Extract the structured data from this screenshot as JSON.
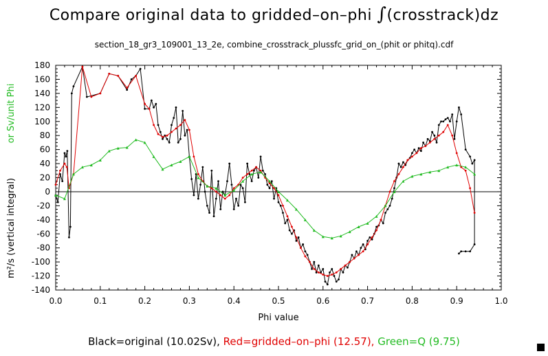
{
  "title_prefix": "Compare original data to gridded–on–phi ",
  "title_integral": "∫",
  "title_suffix": "(crosstrack)dz",
  "subtitle": "section_18_gr3_109001_13_2e, combine_crosstrack_plussfc_grid_on_(phit or phitq).cdf",
  "legend": {
    "black": "Black=original (10.02Sv),",
    "red": "Red=gridded–on–phi (12.57),",
    "green": "Green=Q (9.75)"
  },
  "colors": {
    "black": "#000000",
    "red": "#e00000",
    "green": "#22bb22"
  },
  "chart_data": {
    "type": "line",
    "title": "Compare original data to gridded-on-phi ∫(crosstrack)dz",
    "xlabel": "Phi value",
    "ylabel_black": "m²/s (vertical integral)",
    "ylabel_green": "or Sv/unit Phi",
    "xlim": [
      0.0,
      1.0
    ],
    "ylim": [
      -140,
      180
    ],
    "xticks": [
      "0.0",
      "0.1",
      "0.2",
      "0.3",
      "0.4",
      "0.5",
      "0.6",
      "0.7",
      "0.8",
      "0.9",
      "1.0"
    ],
    "yticks": [
      "180",
      "160",
      "140",
      "120",
      "100",
      "80",
      "60",
      "40",
      "20",
      "0",
      "-20",
      "-40",
      "-60",
      "-80",
      "-100",
      "-120",
      "-140"
    ],
    "series": [
      {
        "name": "original",
        "color": "black",
        "x": [
          0.0,
          0.005,
          0.01,
          0.015,
          0.02,
          0.023,
          0.026,
          0.03,
          0.033,
          0.036,
          0.04,
          0.06,
          0.07,
          0.1,
          0.12,
          0.14,
          0.16,
          0.17,
          0.18,
          0.19,
          0.2,
          0.21,
          0.215,
          0.22,
          0.225,
          0.23,
          0.235,
          0.24,
          0.245,
          0.25,
          0.255,
          0.26,
          0.265,
          0.27,
          0.275,
          0.28,
          0.285,
          0.29,
          0.295,
          0.3,
          0.305,
          0.31,
          0.315,
          0.32,
          0.325,
          0.33,
          0.335,
          0.34,
          0.345,
          0.35,
          0.355,
          0.36,
          0.365,
          0.37,
          0.375,
          0.38,
          0.385,
          0.39,
          0.395,
          0.4,
          0.405,
          0.41,
          0.415,
          0.42,
          0.425,
          0.43,
          0.435,
          0.44,
          0.445,
          0.45,
          0.455,
          0.46,
          0.465,
          0.47,
          0.475,
          0.48,
          0.485,
          0.49,
          0.495,
          0.5,
          0.505,
          0.51,
          0.515,
          0.52,
          0.525,
          0.53,
          0.535,
          0.54,
          0.545,
          0.55,
          0.555,
          0.56,
          0.565,
          0.57,
          0.575,
          0.58,
          0.585,
          0.59,
          0.595,
          0.6,
          0.605,
          0.61,
          0.615,
          0.62,
          0.625,
          0.63,
          0.635,
          0.64,
          0.645,
          0.65,
          0.655,
          0.66,
          0.665,
          0.67,
          0.675,
          0.68,
          0.685,
          0.69,
          0.695,
          0.7,
          0.705,
          0.71,
          0.715,
          0.72,
          0.725,
          0.73,
          0.735,
          0.74,
          0.745,
          0.75,
          0.755,
          0.76,
          0.765,
          0.77,
          0.775,
          0.78,
          0.785,
          0.79,
          0.795,
          0.8,
          0.805,
          0.81,
          0.815,
          0.82,
          0.825,
          0.83,
          0.835,
          0.84,
          0.845,
          0.85,
          0.855,
          0.86,
          0.865,
          0.87,
          0.875,
          0.88,
          0.885,
          0.89,
          0.895,
          0.9,
          0.905,
          0.91,
          0.92,
          0.93,
          0.935,
          0.94,
          0.94,
          0.93,
          0.92,
          0.91,
          0.905
        ],
        "y": [
          -5,
          -15,
          25,
          15,
          55,
          50,
          58,
          -65,
          -50,
          140,
          150,
          178,
          135,
          140,
          168,
          165,
          145,
          160,
          165,
          175,
          118,
          118,
          130,
          120,
          125,
          95,
          85,
          75,
          80,
          75,
          70,
          95,
          105,
          120,
          70,
          75,
          115,
          80,
          88,
          50,
          18,
          -5,
          25,
          -10,
          10,
          35,
          0,
          -20,
          -30,
          30,
          -35,
          -10,
          15,
          -25,
          0,
          -5,
          15,
          40,
          10,
          -25,
          -10,
          -20,
          10,
          5,
          -15,
          40,
          25,
          15,
          30,
          35,
          20,
          50,
          30,
          25,
          10,
          5,
          15,
          -10,
          5,
          -15,
          -20,
          -30,
          -45,
          -40,
          -55,
          -60,
          -55,
          -70,
          -65,
          -80,
          -75,
          -85,
          -90,
          -100,
          -110,
          -100,
          -115,
          -105,
          -115,
          -110,
          -128,
          -132,
          -115,
          -110,
          -120,
          -128,
          -125,
          -110,
          -115,
          -105,
          -108,
          -100,
          -90,
          -95,
          -85,
          -90,
          -80,
          -75,
          -82,
          -70,
          -65,
          -68,
          -60,
          -50,
          -48,
          -40,
          -45,
          -30,
          -25,
          -20,
          -10,
          5,
          20,
          40,
          35,
          42,
          38,
          45,
          48,
          55,
          60,
          55,
          62,
          58,
          70,
          65,
          75,
          72,
          85,
          80,
          70,
          95,
          100,
          100,
          103,
          105,
          100,
          110,
          75,
          100,
          120,
          110,
          60,
          50,
          40,
          45,
          -75,
          -85,
          -85,
          -85,
          -88
        ],
        "marker": "small-dot"
      },
      {
        "name": "gridded-on-phi",
        "color": "red",
        "x": [
          0.0,
          0.01,
          0.02,
          0.025,
          0.03,
          0.04,
          0.06,
          0.08,
          0.1,
          0.12,
          0.14,
          0.16,
          0.18,
          0.2,
          0.21,
          0.22,
          0.23,
          0.24,
          0.25,
          0.26,
          0.27,
          0.28,
          0.29,
          0.3,
          0.31,
          0.32,
          0.33,
          0.34,
          0.35,
          0.36,
          0.37,
          0.38,
          0.39,
          0.4,
          0.41,
          0.42,
          0.43,
          0.44,
          0.45,
          0.46,
          0.47,
          0.48,
          0.49,
          0.5,
          0.51,
          0.52,
          0.53,
          0.54,
          0.55,
          0.56,
          0.57,
          0.58,
          0.59,
          0.6,
          0.61,
          0.62,
          0.63,
          0.64,
          0.65,
          0.66,
          0.67,
          0.68,
          0.69,
          0.7,
          0.71,
          0.72,
          0.73,
          0.74,
          0.75,
          0.76,
          0.77,
          0.78,
          0.79,
          0.8,
          0.81,
          0.82,
          0.83,
          0.84,
          0.85,
          0.86,
          0.87,
          0.88,
          0.89,
          0.9,
          0.91,
          0.92,
          0.93,
          0.94
        ],
        "y": [
          10,
          30,
          40,
          35,
          5,
          25,
          178,
          135,
          140,
          168,
          165,
          148,
          165,
          125,
          118,
          95,
          82,
          78,
          80,
          85,
          90,
          95,
          102,
          88,
          50,
          25,
          15,
          8,
          5,
          0,
          -5,
          -10,
          -5,
          5,
          10,
          20,
          25,
          30,
          35,
          30,
          20,
          12,
          5,
          -5,
          -20,
          -35,
          -50,
          -65,
          -80,
          -92,
          -100,
          -110,
          -115,
          -118,
          -120,
          -118,
          -115,
          -110,
          -105,
          -100,
          -95,
          -90,
          -85,
          -75,
          -65,
          -55,
          -40,
          -20,
          0,
          15,
          25,
          35,
          45,
          50,
          55,
          62,
          65,
          70,
          75,
          80,
          85,
          95,
          80,
          55,
          35,
          30,
          5,
          -30
        ],
        "marker": "small-dot"
      },
      {
        "name": "Q",
        "color": "green",
        "x": [
          0.0,
          0.02,
          0.04,
          0.06,
          0.08,
          0.1,
          0.12,
          0.14,
          0.16,
          0.18,
          0.2,
          0.22,
          0.24,
          0.26,
          0.28,
          0.3,
          0.32,
          0.34,
          0.36,
          0.38,
          0.4,
          0.42,
          0.44,
          0.46,
          0.48,
          0.5,
          0.52,
          0.54,
          0.56,
          0.58,
          0.6,
          0.62,
          0.64,
          0.66,
          0.68,
          0.7,
          0.72,
          0.74,
          0.76,
          0.78,
          0.8,
          0.82,
          0.84,
          0.86,
          0.88,
          0.9,
          0.92,
          0.94
        ],
        "y": [
          -5,
          -10,
          25,
          35,
          38,
          45,
          58,
          62,
          63,
          74,
          70,
          50,
          32,
          38,
          43,
          50,
          20,
          8,
          5,
          -5,
          2,
          15,
          25,
          28,
          15,
          0,
          -12,
          -25,
          -40,
          -55,
          -64,
          -66,
          -63,
          -57,
          -50,
          -45,
          -35,
          -20,
          0,
          15,
          22,
          25,
          28,
          30,
          35,
          38,
          35,
          25
        ],
        "marker": "small-triangle"
      }
    ]
  }
}
